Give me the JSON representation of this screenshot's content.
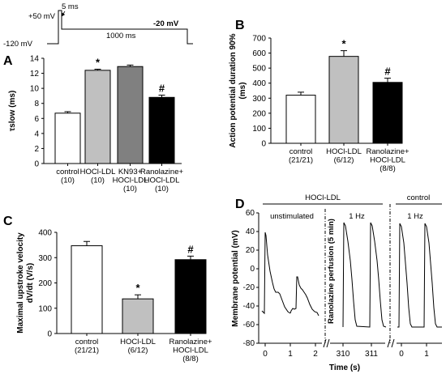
{
  "protocol": {
    "labels": {
      "v1": "+50 mV",
      "v2": "-120 mV",
      "t1": "5 ms",
      "t2": "1000 ms",
      "v3": "-20 mV"
    }
  },
  "chart_data": [
    {
      "id": "A",
      "type": "bar",
      "panel_label": "A",
      "ylabel": "τslow (ms)",
      "ylim": [
        0,
        14
      ],
      "yticks": [
        0,
        2,
        4,
        6,
        8,
        10,
        12,
        14
      ],
      "categories": [
        [
          "control",
          "(10)"
        ],
        [
          "HOCl-LDL",
          "(10)"
        ],
        [
          "KN93+",
          "HOCl-LDL",
          "(10)"
        ],
        [
          "Ranolazine+",
          "HOCl-LDL",
          "(10)"
        ]
      ],
      "values": [
        6.7,
        12.4,
        12.9,
        8.8
      ],
      "errors": [
        0.2,
        0.15,
        0.2,
        0.3
      ],
      "colors": [
        "#ffffff",
        "#c0c0c0",
        "#808080",
        "#000000"
      ],
      "markers": [
        "",
        "*",
        "",
        "#"
      ]
    },
    {
      "id": "B",
      "type": "bar",
      "panel_label": "B",
      "ylabel": [
        "Action potential duration 90%",
        "(ms)"
      ],
      "ylim": [
        0,
        700
      ],
      "yticks": [
        0,
        100,
        200,
        300,
        400,
        500,
        600,
        700
      ],
      "categories": [
        [
          "control",
          "(21/21)"
        ],
        [
          "HOCl-LDL",
          "(6/12)"
        ],
        [
          "Ranolazine+",
          "HOCl-LDL",
          "(8/8)"
        ]
      ],
      "values": [
        320,
        578,
        405
      ],
      "errors": [
        20,
        38,
        28
      ],
      "colors": [
        "#ffffff",
        "#c0c0c0",
        "#000000"
      ],
      "markers": [
        "",
        "*",
        "#"
      ]
    },
    {
      "id": "C",
      "type": "bar",
      "panel_label": "C",
      "ylabel": [
        "Maximal upstroke velocity",
        "dV/dt (V/s)"
      ],
      "ylim": [
        0,
        400
      ],
      "yticks": [
        0,
        100,
        200,
        300,
        400
      ],
      "categories": [
        [
          "control",
          "(21/21)"
        ],
        [
          "HOCl-LDL",
          "(6/12)"
        ],
        [
          "Ranolazine+",
          "HOCl-LDL",
          "(8/8)"
        ]
      ],
      "values": [
        347,
        137,
        292
      ],
      "errors": [
        17,
        16,
        14
      ],
      "colors": [
        "#ffffff",
        "#c0c0c0",
        "#000000"
      ],
      "markers": [
        "",
        "*",
        "#"
      ]
    },
    {
      "id": "D",
      "type": "line",
      "panel_label": "D",
      "ylabel": "Membrane potential (mV)",
      "xlabel": "Time (s)",
      "ylim": [
        -80,
        60
      ],
      "yticks": [
        -80,
        -60,
        -40,
        -20,
        0,
        20,
        40,
        60
      ],
      "xticks": [
        "0",
        "1",
        "2",
        "310",
        "311",
        "0",
        "1"
      ],
      "header": [
        "HOCl-LDL",
        "control"
      ],
      "conditions": [
        "unstimulated",
        "1 Hz",
        "1 Hz"
      ],
      "annotation": "Ranolazine perfusion (5 min)"
    }
  ]
}
